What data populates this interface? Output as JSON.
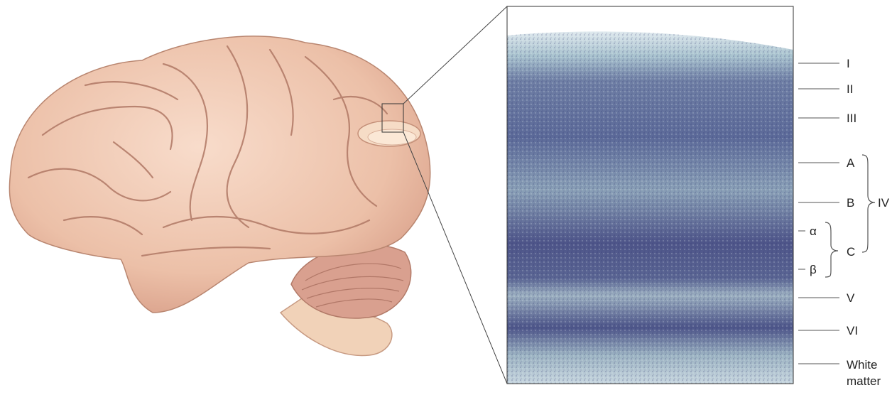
{
  "layers": {
    "I": "I",
    "II": "II",
    "III": "III",
    "IVA": "A",
    "IVB": "B",
    "IVC": "C",
    "IV": "IV",
    "alpha": "α",
    "beta": "β",
    "V": "V",
    "VI": "VI",
    "white1": "White",
    "white2": "matter"
  },
  "colors": {
    "brain_fill": "#f0c9b3",
    "brain_shade": "#c98f7a",
    "section_bg": "#b9c8d2",
    "section_dark": "#4a4f85",
    "cut_face": "#fbe6d2"
  }
}
